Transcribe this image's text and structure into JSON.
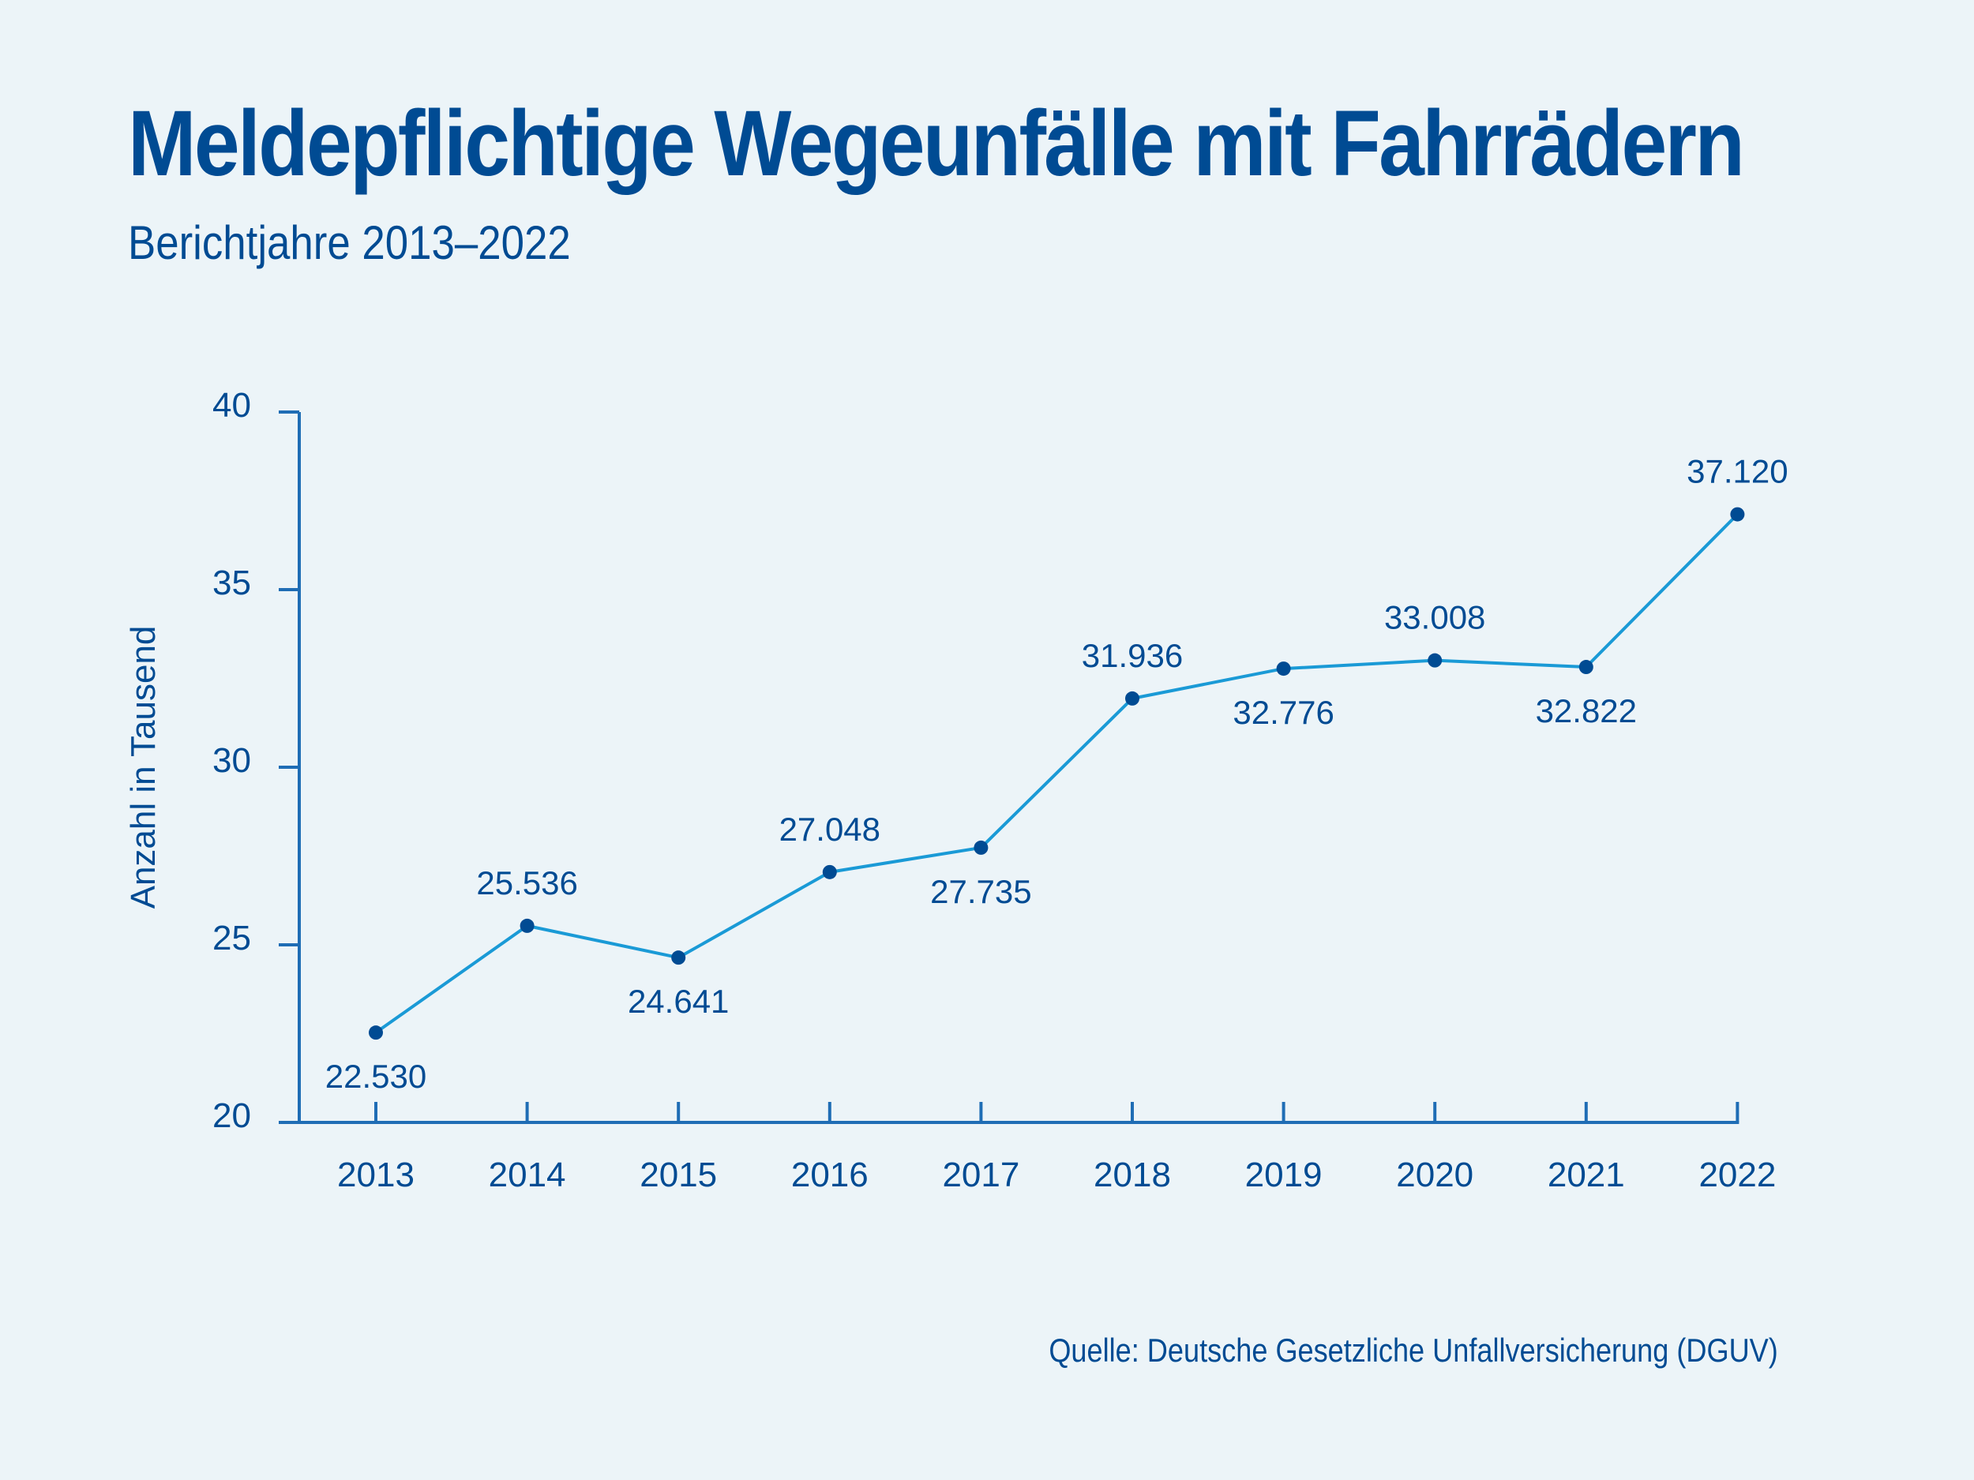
{
  "colors": {
    "background": "#ecf4f8",
    "text": "#004b93",
    "axis": "#1f6db5",
    "line": "#1a9ad6",
    "marker": "#004b93"
  },
  "chart_data": {
    "type": "line",
    "title": "Meldepflichtige Wegeunfälle mit Fahrrädern",
    "subtitle": "Berichtjahre 2013–2022",
    "xlabel": "",
    "ylabel": "Anzahl in Tausend",
    "source": "Quelle: Deutsche Gesetzliche Unfallversicherung (DGUV)",
    "x": [
      "2013",
      "2014",
      "2015",
      "2016",
      "2017",
      "2018",
      "2019",
      "2020",
      "2021",
      "2022"
    ],
    "series": [
      {
        "name": "Meldepflichtige Wegeunfälle mit Fahrrädern",
        "values": [
          22.53,
          25.536,
          24.641,
          27.048,
          27.735,
          31.936,
          32.776,
          33.008,
          32.822,
          37.12
        ],
        "labels": [
          "22.530",
          "25.536",
          "24.641",
          "27.048",
          "27.735",
          "31.936",
          "32.776",
          "33.008",
          "32.822",
          "37.120"
        ],
        "label_positions": [
          "below",
          "above",
          "below",
          "above",
          "below",
          "above",
          "below",
          "above",
          "below",
          "above"
        ]
      }
    ],
    "ylim": [
      20,
      40
    ],
    "yticks": [
      20,
      25,
      30,
      35,
      40
    ],
    "ytick_labels": [
      "20",
      "25",
      "30",
      "35",
      "40"
    ],
    "grid": false,
    "legend": "none"
  }
}
